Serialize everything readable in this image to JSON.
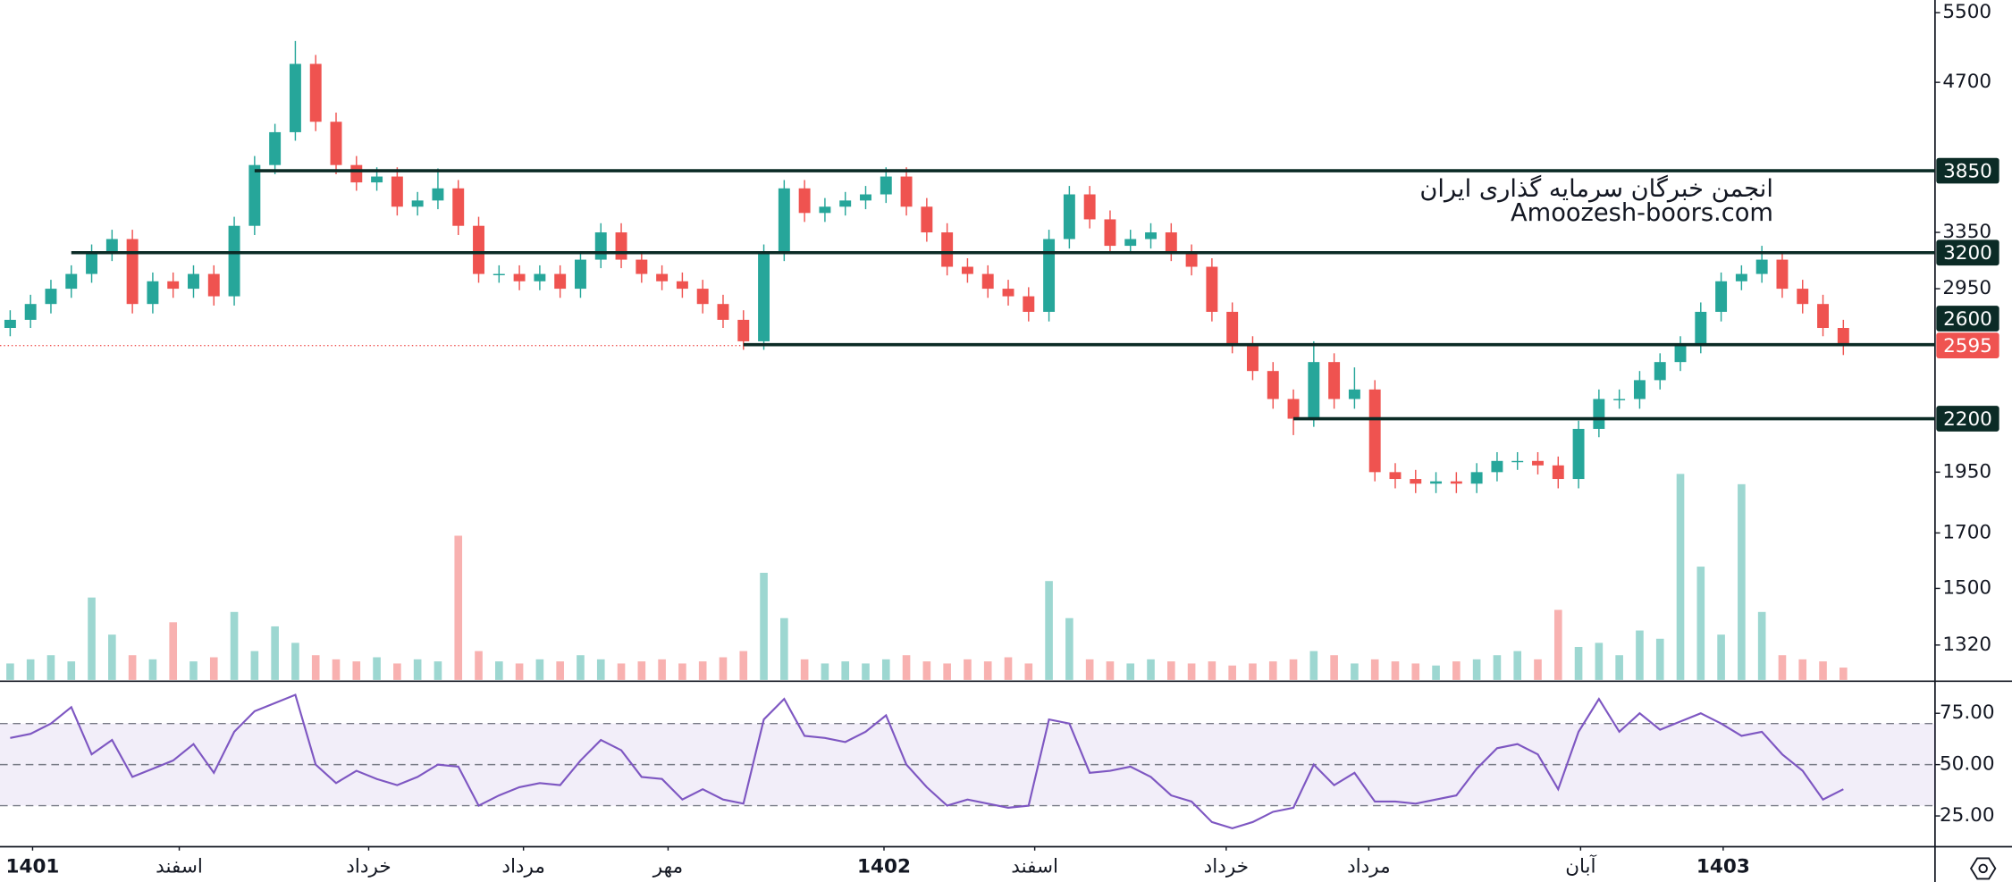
{
  "chart_data": {
    "type": "candlestick",
    "log_scale": true,
    "ylim": [
      1220,
      5660
    ],
    "yticks": [
      5500,
      4700,
      3350,
      2950,
      1950,
      1700,
      1500,
      1320
    ],
    "xlim": [
      -0.5,
      94.5
    ],
    "xticks": [
      {
        "value": 1.1,
        "label": "1401"
      },
      {
        "value": 8.3,
        "label": "اسفند"
      },
      {
        "value": 17.6,
        "label": "خرداد"
      },
      {
        "value": 25.2,
        "label": "مرداد"
      },
      {
        "value": 32.3,
        "label": "مهر"
      },
      {
        "value": 42.9,
        "label": "1402"
      },
      {
        "value": 50.3,
        "label": "اسفند"
      },
      {
        "value": 59.7,
        "label": "خرداد"
      },
      {
        "value": 66.7,
        "label": "مرداد"
      },
      {
        "value": 77.1,
        "label": "آبان"
      },
      {
        "value": 84.1,
        "label": "1403"
      }
    ],
    "up_color": "#26a69a",
    "down_color": "#ef5350",
    "open": [
      2700,
      2750,
      2850,
      2950,
      3050,
      3200,
      3300,
      2850,
      3000,
      2950,
      3050,
      2900,
      3400,
      3900,
      4200,
      4900,
      4300,
      3900,
      3750,
      3800,
      3550,
      3600,
      3700,
      3400,
      3050,
      3050,
      3000,
      3050,
      2950,
      3150,
      3350,
      3150,
      3050,
      3000,
      2950,
      2850,
      2750,
      2620,
      3200,
      3700,
      3500,
      3550,
      3600,
      3650,
      3800,
      3550,
      3350,
      3100,
      3050,
      2950,
      2900,
      2800,
      3300,
      3650,
      3450,
      3250,
      3300,
      3350,
      3200,
      3100,
      2800,
      2600,
      2450,
      2300,
      2200,
      2500,
      2300,
      2350,
      1950,
      1920,
      1900,
      1910,
      1900,
      1950,
      2000,
      2000,
      1980,
      1920,
      2150,
      2300,
      2300,
      2400,
      2500,
      2600,
      2800,
      3000,
      3050,
      3150,
      2950,
      2850,
      2700
    ],
    "high": [
      2810,
      2910,
      3010,
      3110,
      3260,
      3370,
      3370,
      3060,
      3060,
      3110,
      3110,
      3470,
      3980,
      4280,
      5160,
      5000,
      4390,
      3980,
      3880,
      3880,
      3670,
      3870,
      3770,
      3470,
      3110,
      3110,
      3110,
      3110,
      3210,
      3420,
      3420,
      3210,
      3110,
      3060,
      3010,
      2910,
      2810,
      3260,
      3770,
      3770,
      3620,
      3670,
      3720,
      3880,
      3880,
      3620,
      3420,
      3160,
      3110,
      3010,
      2960,
      3370,
      3720,
      3720,
      3520,
      3370,
      3420,
      3420,
      3260,
      3160,
      2860,
      2650,
      2500,
      2350,
      2620,
      2550,
      2470,
      2400,
      1990,
      1960,
      1950,
      1950,
      1990,
      2040,
      2040,
      2040,
      2020,
      2190,
      2350,
      2350,
      2450,
      2550,
      2650,
      2860,
      3060,
      3110,
      3250,
      3210,
      3010,
      2910,
      2750
    ],
    "low": [
      2650,
      2700,
      2790,
      2890,
      2990,
      3140,
      2790,
      2790,
      2890,
      2890,
      2840,
      2840,
      3330,
      3820,
      4120,
      4210,
      3820,
      3680,
      3680,
      3480,
      3480,
      3530,
      3330,
      2990,
      2990,
      2940,
      2940,
      2890,
      2890,
      3090,
      3090,
      2990,
      2940,
      2890,
      2790,
      2700,
      2570,
      2570,
      3140,
      3430,
      3430,
      3480,
      3530,
      3580,
      3480,
      3280,
      3040,
      2990,
      2890,
      2840,
      2740,
      2740,
      3230,
      3380,
      3190,
      3190,
      3230,
      3140,
      3040,
      2740,
      2550,
      2400,
      2250,
      2120,
      2160,
      2250,
      2250,
      1910,
      1880,
      1860,
      1860,
      1860,
      1860,
      1910,
      1960,
      1940,
      1880,
      1880,
      2110,
      2250,
      2250,
      2350,
      2450,
      2550,
      2740,
      2940,
      2990,
      2890,
      2790,
      2650,
      2540
    ],
    "close": [
      2750,
      2850,
      2950,
      3050,
      3200,
      3300,
      2850,
      3000,
      2950,
      3050,
      2900,
      3400,
      3900,
      4200,
      4900,
      4300,
      3900,
      3750,
      3800,
      3550,
      3600,
      3700,
      3400,
      3050,
      3050,
      3000,
      3050,
      2950,
      3150,
      3350,
      3150,
      3050,
      3000,
      2950,
      2850,
      2750,
      2620,
      3200,
      3700,
      3500,
      3550,
      3600,
      3650,
      3800,
      3550,
      3350,
      3100,
      3050,
      2950,
      2900,
      2800,
      3300,
      3650,
      3450,
      3250,
      3300,
      3350,
      3200,
      3100,
      2800,
      2600,
      2450,
      2300,
      2200,
      2500,
      2300,
      2350,
      1950,
      1920,
      1900,
      1910,
      1900,
      1950,
      2000,
      2000,
      1980,
      1920,
      2150,
      2300,
      2300,
      2400,
      2500,
      2600,
      2800,
      3000,
      3050,
      3150,
      2950,
      2850,
      2700,
      2595
    ],
    "volume": {
      "ylim": [
        0,
        330
      ],
      "values": [
        8,
        10,
        12,
        9,
        40,
        22,
        12,
        10,
        28,
        9,
        11,
        33,
        14,
        26,
        18,
        12,
        10,
        9,
        11,
        8,
        10,
        9,
        70,
        14,
        9,
        8,
        10,
        9,
        12,
        10,
        8,
        9,
        10,
        8,
        9,
        11,
        14,
        52,
        30,
        10,
        8,
        9,
        8,
        10,
        12,
        9,
        8,
        10,
        9,
        11,
        8,
        48,
        30,
        10,
        9,
        8,
        10,
        9,
        8,
        9,
        7,
        8,
        9,
        10,
        14,
        12,
        8,
        10,
        9,
        8,
        7,
        9,
        10,
        12,
        14,
        10,
        34,
        16,
        18,
        12,
        24,
        20,
        100,
        55,
        22,
        95,
        33,
        12,
        10,
        9,
        6
      ]
    },
    "levels": [
      {
        "value": 3850,
        "start": 12
      },
      {
        "value": 3200,
        "start": 3
      },
      {
        "value": 2600,
        "start": 36
      },
      {
        "value": 2200,
        "start": 63
      }
    ],
    "level_color": "#0b2b26",
    "last_price": 2595,
    "last_price_color": "#ef5350",
    "watermark": [
      "انجمن خبرگان سرمایه گذاری ایران",
      "Amoozesh-boors.com"
    ],
    "rsi": {
      "color": "#7e57c2",
      "ylim": [
        10,
        90
      ],
      "yticks": [
        {
          "value": 75,
          "label": "75.00"
        },
        {
          "value": 50,
          "label": "50.00"
        },
        {
          "value": 25,
          "label": "25.00"
        }
      ],
      "band": [
        30,
        70
      ],
      "midline": 50,
      "values": [
        63,
        65,
        70,
        78,
        55,
        62,
        44,
        48,
        52,
        60,
        46,
        66,
        76,
        80,
        84,
        50,
        41,
        47,
        43,
        40,
        44,
        50,
        49,
        30,
        35,
        39,
        41,
        40,
        52,
        62,
        57,
        44,
        43,
        33,
        38,
        33,
        31,
        72,
        82,
        64,
        63,
        61,
        66,
        74,
        50,
        39,
        30,
        33,
        31,
        29,
        30,
        72,
        70,
        46,
        47,
        49,
        44,
        35,
        32,
        22,
        19,
        22,
        27,
        29,
        50,
        40,
        46,
        32,
        32,
        31,
        33,
        35,
        48,
        58,
        60,
        55,
        38,
        66,
        82,
        66,
        75,
        67,
        71,
        75,
        70,
        64,
        66,
        55,
        47,
        33,
        38
      ]
    }
  }
}
